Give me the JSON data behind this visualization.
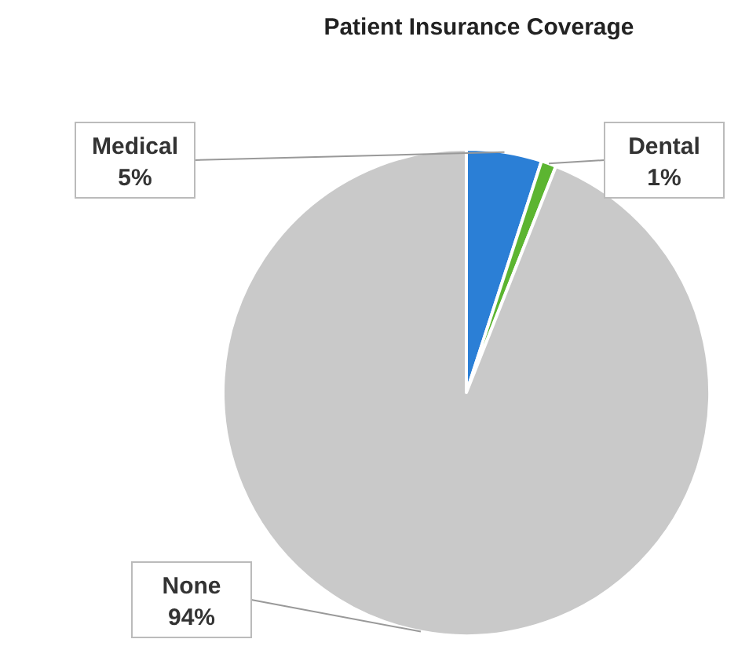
{
  "chart_data": {
    "type": "pie",
    "title": "Patient Insurance Coverage",
    "categories": [
      "Medical",
      "Dental",
      "None"
    ],
    "values": [
      5,
      1,
      94
    ],
    "colors": [
      "#2b7fd6",
      "#5cb531",
      "#c9c9c9"
    ],
    "value_labels": [
      "5%",
      "1%",
      "94%"
    ]
  }
}
